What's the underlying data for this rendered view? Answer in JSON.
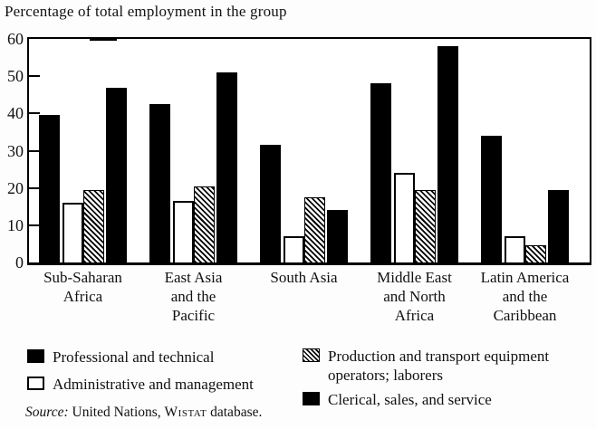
{
  "title": "Percentage of total employment in the group",
  "chart_data": {
    "type": "bar",
    "categories": [
      "Sub-Saharan Africa",
      "East Asia and the Pacific",
      "South Asia",
      "Middle East and North Africa",
      "Latin America and the Caribbean"
    ],
    "category_label_lines": [
      [
        "Sub-Saharan",
        "Africa"
      ],
      [
        "East Asia",
        "and the",
        "Pacific"
      ],
      [
        "South Asia"
      ],
      [
        "Middle East",
        "and North",
        "Africa"
      ],
      [
        "Latin America",
        "and the",
        "Caribbean"
      ]
    ],
    "series": [
      {
        "name": "Professional and technical",
        "style": "solid-black",
        "values": [
          39.5,
          42.5,
          31.5,
          48,
          34
        ]
      },
      {
        "name": "Administrative and management",
        "style": "white-outline",
        "values": [
          16,
          16.5,
          7,
          24,
          7
        ]
      },
      {
        "name": "Production and transport equipment operators; laborers",
        "style": "diagonal-hatch",
        "values": [
          19.5,
          20.5,
          17.5,
          19.5,
          4.5
        ]
      },
      {
        "name": "Clerical, sales, and service",
        "style": "solid-black",
        "values": [
          47,
          51,
          14,
          58,
          19.5
        ]
      }
    ],
    "title": "Percentage of total employment in the group",
    "xlabel": "",
    "ylabel": "",
    "ylim": [
      0,
      60
    ],
    "yticks": [
      0,
      10,
      20,
      30,
      40,
      50,
      60
    ],
    "grid": false,
    "legend_position": "bottom"
  },
  "legend": {
    "items": [
      {
        "label": "Professional and technical",
        "swatch": "solid-black"
      },
      {
        "label": "Administrative and management",
        "swatch": "white-outline"
      },
      {
        "label": "Production and transport equipment operators; laborers",
        "swatch": "diagonal-hatch"
      },
      {
        "label": "Clerical, sales, and service",
        "swatch": "solid-black"
      }
    ]
  },
  "source": {
    "prefix": "Source:",
    "body": " United Nations, ",
    "smallcaps": "Wistat",
    "tail": " database."
  },
  "colors": {
    "bar_black": "#000000",
    "bar_white": "#ffffff",
    "frame": "#000000",
    "background": "#fdfdfd"
  }
}
